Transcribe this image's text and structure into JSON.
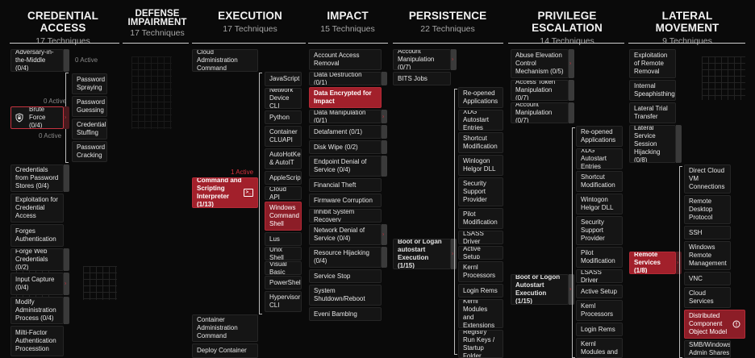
{
  "headers": [
    {
      "id": "credential-access",
      "title": "CREDENTIAL ACCESS",
      "sub": "17 Techniques"
    },
    {
      "id": "defense-impairment",
      "title_l1": "DEFENSE",
      "title_l2": "IMPAIRMENT",
      "sub": "17 Techniques"
    },
    {
      "id": "execution",
      "title": "EXECUTION",
      "sub": "17 Techniques"
    },
    {
      "id": "impact",
      "title": "IMPACT",
      "sub": "15 Techniques"
    },
    {
      "id": "persistence",
      "title": "PERSISTENCE",
      "sub": "22 Techniques"
    },
    {
      "id": "privilege-escalation",
      "title": "PRIVILEGE ESCALATION",
      "sub": "14 Techniques"
    },
    {
      "id": "lateral-movement",
      "title": "LATERAL MOVEMENT",
      "sub": "9 Techniques"
    }
  ],
  "credential_access": {
    "adversary_in_the_middle": "Adversary-in-the-Middle (0/4)",
    "zero_active_1": "0 Active",
    "brute_force_active": "0 Active",
    "brute_force": "Brute Force (0/4)",
    "zero_active_2": "0 Active",
    "brute_subs": [
      "Password Spraying",
      "Password Guessing",
      "Credential Stuffing",
      "Password Cracking"
    ],
    "items": [
      "Credentials from Password Stores (0/4)",
      "Exploitation for Credential Access",
      "Forges Authentication",
      "Forge Web Credentials (0/2)",
      "Input Capture (0/4)",
      "Modify Administration Process (0/4)",
      "Milti-Factor Authentication Processtion"
    ]
  },
  "execution": {
    "top": "Cloud Administration Command",
    "active": "1 Active",
    "main": "Command and Scripting Interpreter (1/13)",
    "subs": [
      "JavaScript",
      "Network Device CLI",
      "Python",
      "Container CLUAPI",
      "AutoHotKey & AutoIT",
      "AppleScript",
      "Cloud API",
      "Windows Command Shell",
      "Lus",
      "Unix Shell",
      "Visual Basic",
      "PowerShell",
      "Hypervisor CLI"
    ],
    "bottom": [
      "Container Administration Command",
      "Deploy Container"
    ]
  },
  "impact": {
    "items": [
      "Account Access Removal",
      "Data Destruction (0/1)",
      "Data Encrypted for Impact",
      "Data Manipulation (0/1)",
      "Detafament (0/1)",
      "Disk Wipe (0/2)",
      "Endpoint Denial of Service (0/4)",
      "Financial Theft",
      "Firmware Corruption",
      "Inhibit System Recovery",
      "Network Denial of Service (0/4)",
      "Resource Hijacking (0/4)",
      "Service Stop",
      "System Shutdown/Reboot",
      "Eveni Bamblng"
    ]
  },
  "persistence": {
    "top": [
      "Account Manipulation (0/7)",
      "BITS Jobs"
    ],
    "main": "Boot or Logan autostart Execution (1/15)",
    "subs": [
      "Re-opened Applications",
      "XDG Autostart Entries",
      "Shortcut Modification",
      "Winlogon Helgor DLL",
      "Security Support Provider",
      "Pilot Modification",
      "LSASS Driver",
      "Active Setup",
      "Kernl Processors",
      "Login Rems",
      "Kernl Modules and Extensions",
      "Registry Run Keys / Startup Folder"
    ]
  },
  "privilege_escalation": {
    "top": [
      "Abuse Elevation Control Mechanism (0/5)",
      "Access Token Manipulation (0/7)",
      "Account Manipulation (0/7)"
    ],
    "main": "Boot or Logon Autostart Execution (1/15)",
    "subs": [
      "Re-opened Applications",
      "XDG Autostart Entries",
      "Shortcut Modification",
      "Wintogon Helgor DLL",
      "Security Support Provider",
      "Pilot Modification",
      "LSASS Driver",
      "Active Setup",
      "Keml Processors",
      "Login Rems",
      "Kernl Modules and"
    ]
  },
  "lateral_movement": {
    "top": [
      "Exploitation of Remote Removal",
      "Internal Speaphisthing",
      "Lateral Trial Transfer",
      "Lateral Service Session Hijacking (0/8)"
    ],
    "main": "Remote Services (1/8)",
    "subs": [
      "Direct Cloud VM Connections",
      "Remote Desktop Protocol",
      "SSH",
      "Windows Remote Management",
      "VNC",
      "Cloud Services",
      "Distributed Component Object Model",
      "SMB/Windows Admin Shares"
    ]
  },
  "colors": {
    "accent": "#a2202b",
    "background": "#0a0a0a",
    "card": "#151515",
    "muted": "#a6a6a6"
  },
  "icons": {
    "brute_force": "lock-shield-icon",
    "command": "terminal-icon",
    "dcom": "alert-circle-icon"
  }
}
